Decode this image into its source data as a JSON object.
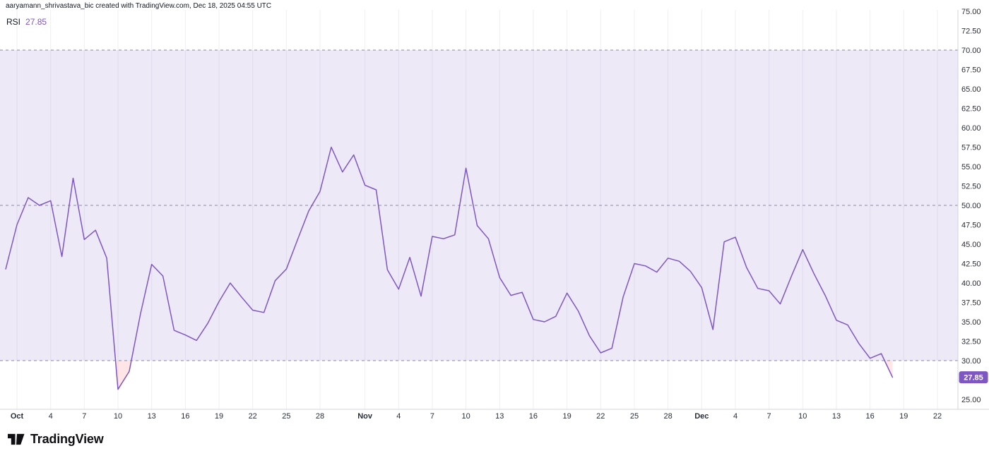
{
  "attribution": "aaryamann_shrivastava_bic created with TradingView.com, Dec 18, 2025 04:55 UTC",
  "legend": {
    "indicator": "RSI",
    "value": "27.85"
  },
  "logo": {
    "text": "TradingView"
  },
  "colors": {
    "line": "#7E57C2",
    "band_fill": "rgba(126, 87, 194, 0.13)",
    "oversold_fill": "rgba(255, 82, 82, 0.15)",
    "dashed": "#8B87A5",
    "grid": "#EFEFF4",
    "axis_text": "#2A2E39",
    "axis_border": "#D1D4DC",
    "badge_bg": "#7E57C2",
    "badge_text": "#FFFFFF"
  },
  "chart_data": {
    "type": "line",
    "title": "RSI",
    "x_start_date": "2025-09-30",
    "x_interval": "1 day",
    "last_value": 27.85,
    "last_value_label": "27.85",
    "levels": {
      "overbought": 70,
      "midline": 50,
      "oversold": 30
    },
    "ylim": [
      23.7,
      75.2
    ],
    "grid": "vertical-only",
    "legend_position": "top-left",
    "series": [
      {
        "name": "RSI",
        "color": "#7E57C2",
        "values": [
          41.8,
          47.5,
          51.0,
          50.0,
          50.6,
          43.4,
          53.5,
          45.6,
          46.8,
          43.2,
          26.3,
          28.6,
          36.0,
          42.4,
          40.9,
          33.9,
          33.3,
          32.6,
          34.8,
          37.6,
          40.0,
          38.2,
          36.5,
          36.2,
          40.3,
          41.8,
          45.6,
          49.3,
          51.8,
          57.5,
          54.3,
          56.5,
          52.6,
          52.0,
          41.7,
          39.2,
          43.3,
          38.3,
          46.0,
          45.7,
          46.2,
          54.8,
          47.4,
          45.7,
          40.7,
          38.4,
          38.8,
          35.3,
          35.0,
          35.7,
          38.7,
          36.4,
          33.2,
          31.0,
          31.6,
          38.2,
          42.5,
          42.2,
          41.4,
          43.2,
          42.8,
          41.5,
          39.4,
          34.0,
          45.3,
          45.9,
          42.0,
          39.3,
          39.0,
          37.3,
          40.9,
          44.3,
          41.2,
          38.4,
          35.2,
          34.6,
          32.2,
          30.3,
          30.9,
          27.85
        ]
      }
    ],
    "x_ticks": [
      {
        "i": 1,
        "label": "Oct",
        "bold": true
      },
      {
        "i": 4,
        "label": "4"
      },
      {
        "i": 7,
        "label": "7"
      },
      {
        "i": 10,
        "label": "10"
      },
      {
        "i": 13,
        "label": "13"
      },
      {
        "i": 16,
        "label": "16"
      },
      {
        "i": 19,
        "label": "19"
      },
      {
        "i": 22,
        "label": "22"
      },
      {
        "i": 25,
        "label": "25"
      },
      {
        "i": 28,
        "label": "28"
      },
      {
        "i": 32,
        "label": "Nov",
        "bold": true
      },
      {
        "i": 35,
        "label": "4"
      },
      {
        "i": 38,
        "label": "7"
      },
      {
        "i": 41,
        "label": "10"
      },
      {
        "i": 44,
        "label": "13"
      },
      {
        "i": 47,
        "label": "16"
      },
      {
        "i": 50,
        "label": "19"
      },
      {
        "i": 53,
        "label": "22"
      },
      {
        "i": 56,
        "label": "25"
      },
      {
        "i": 59,
        "label": "28"
      },
      {
        "i": 62,
        "label": "Dec",
        "bold": true
      },
      {
        "i": 65,
        "label": "4"
      },
      {
        "i": 68,
        "label": "7"
      },
      {
        "i": 71,
        "label": "10"
      },
      {
        "i": 74,
        "label": "13"
      },
      {
        "i": 77,
        "label": "16"
      },
      {
        "i": 80,
        "label": "19"
      },
      {
        "i": 83,
        "label": "22"
      }
    ],
    "y_ticks": [
      {
        "value": 75.0,
        "label": "75.00"
      },
      {
        "value": 72.5,
        "label": "72.50"
      },
      {
        "value": 70.0,
        "label": "70.00"
      },
      {
        "value": 67.5,
        "label": "67.50"
      },
      {
        "value": 65.0,
        "label": "65.00"
      },
      {
        "value": 62.5,
        "label": "62.50"
      },
      {
        "value": 60.0,
        "label": "60.00"
      },
      {
        "value": 57.5,
        "label": "57.50"
      },
      {
        "value": 55.0,
        "label": "55.00"
      },
      {
        "value": 52.5,
        "label": "52.50"
      },
      {
        "value": 50.0,
        "label": "50.00"
      },
      {
        "value": 47.5,
        "label": "47.50"
      },
      {
        "value": 45.0,
        "label": "45.00"
      },
      {
        "value": 42.5,
        "label": "42.50"
      },
      {
        "value": 40.0,
        "label": "40.00"
      },
      {
        "value": 37.5,
        "label": "37.50"
      },
      {
        "value": 35.0,
        "label": "35.00"
      },
      {
        "value": 32.5,
        "label": "32.50"
      },
      {
        "value": 30.0,
        "label": "30.00"
      },
      {
        "value": 25.0,
        "label": "25.00"
      }
    ]
  }
}
